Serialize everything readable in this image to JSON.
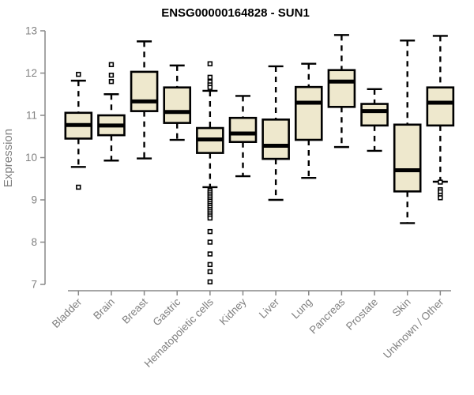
{
  "chart_data": {
    "type": "boxplot",
    "title": "ENSG00000164828 - SUN1",
    "ylabel": "Expression",
    "xlabel": "",
    "ylim": [
      7,
      13
    ],
    "yticks": [
      7,
      8,
      9,
      10,
      11,
      12,
      13
    ],
    "grid": false,
    "legend": "none",
    "categories": [
      "Bladder",
      "Brain",
      "Breast",
      "Gastric",
      "Hematopoietic cells",
      "Kidney",
      "Liver",
      "Lung",
      "Pancreas",
      "Prostate",
      "Skin",
      "Unknown / Other"
    ],
    "series": [
      {
        "name": "Bladder",
        "whislo": 9.78,
        "q1": 10.45,
        "med": 10.77,
        "q3": 11.06,
        "whishi": 11.82,
        "outliers": [
          11.97,
          9.3
        ]
      },
      {
        "name": "Brain",
        "whislo": 9.93,
        "q1": 10.53,
        "med": 10.76,
        "q3": 11.0,
        "whishi": 11.5,
        "outliers": [
          12.2,
          11.95,
          11.8
        ]
      },
      {
        "name": "Breast",
        "whislo": 9.98,
        "q1": 11.1,
        "med": 11.33,
        "q3": 12.03,
        "whishi": 12.75,
        "outliers": []
      },
      {
        "name": "Gastric",
        "whislo": 10.42,
        "q1": 10.82,
        "med": 11.08,
        "q3": 11.66,
        "whishi": 12.18,
        "outliers": []
      },
      {
        "name": "Hematopoietic cells",
        "whislo": 9.3,
        "q1": 10.11,
        "med": 10.43,
        "q3": 10.7,
        "whishi": 11.58,
        "outliers": [
          12.22,
          11.9,
          11.79,
          11.72,
          11.66,
          9.22,
          9.17,
          9.12,
          9.07,
          9.02,
          8.97,
          8.92,
          8.87,
          8.82,
          8.77,
          8.72,
          8.67,
          8.62,
          8.57,
          8.25,
          8.0,
          7.72,
          7.47,
          7.3,
          7.06
        ]
      },
      {
        "name": "Kidney",
        "whislo": 9.56,
        "q1": 10.37,
        "med": 10.57,
        "q3": 10.94,
        "whishi": 11.46,
        "outliers": []
      },
      {
        "name": "Liver",
        "whislo": 9.0,
        "q1": 9.97,
        "med": 10.28,
        "q3": 10.9,
        "whishi": 12.16,
        "outliers": []
      },
      {
        "name": "Lung",
        "whislo": 9.52,
        "q1": 10.42,
        "med": 11.3,
        "q3": 11.67,
        "whishi": 12.22,
        "outliers": []
      },
      {
        "name": "Pancreas",
        "whislo": 10.25,
        "q1": 11.2,
        "med": 11.8,
        "q3": 12.07,
        "whishi": 12.9,
        "outliers": []
      },
      {
        "name": "Prostate",
        "whislo": 10.16,
        "q1": 10.76,
        "med": 11.1,
        "q3": 11.27,
        "whishi": 11.62,
        "outliers": []
      },
      {
        "name": "Skin",
        "whislo": 8.45,
        "q1": 9.2,
        "med": 9.7,
        "q3": 10.78,
        "whishi": 12.77,
        "outliers": []
      },
      {
        "name": "Unknown / Other",
        "whislo": 9.43,
        "q1": 10.76,
        "med": 11.3,
        "q3": 11.66,
        "whishi": 12.88,
        "outliers": [
          9.42,
          9.24,
          9.19,
          9.11,
          9.05
        ]
      }
    ],
    "colors": {
      "box_fill": "#EEE8CD",
      "box_stroke": "#000000",
      "median_color": "#000000",
      "whisker_color": "#000000",
      "outlier_fill": "#ffffff",
      "outlier_stroke": "#000000",
      "axis_color": "#888888",
      "tick_label_color": "#808080",
      "category_label_color": "#808080",
      "ylabel_color": "#808080",
      "title_color": "#000000",
      "background": "#ffffff"
    }
  }
}
